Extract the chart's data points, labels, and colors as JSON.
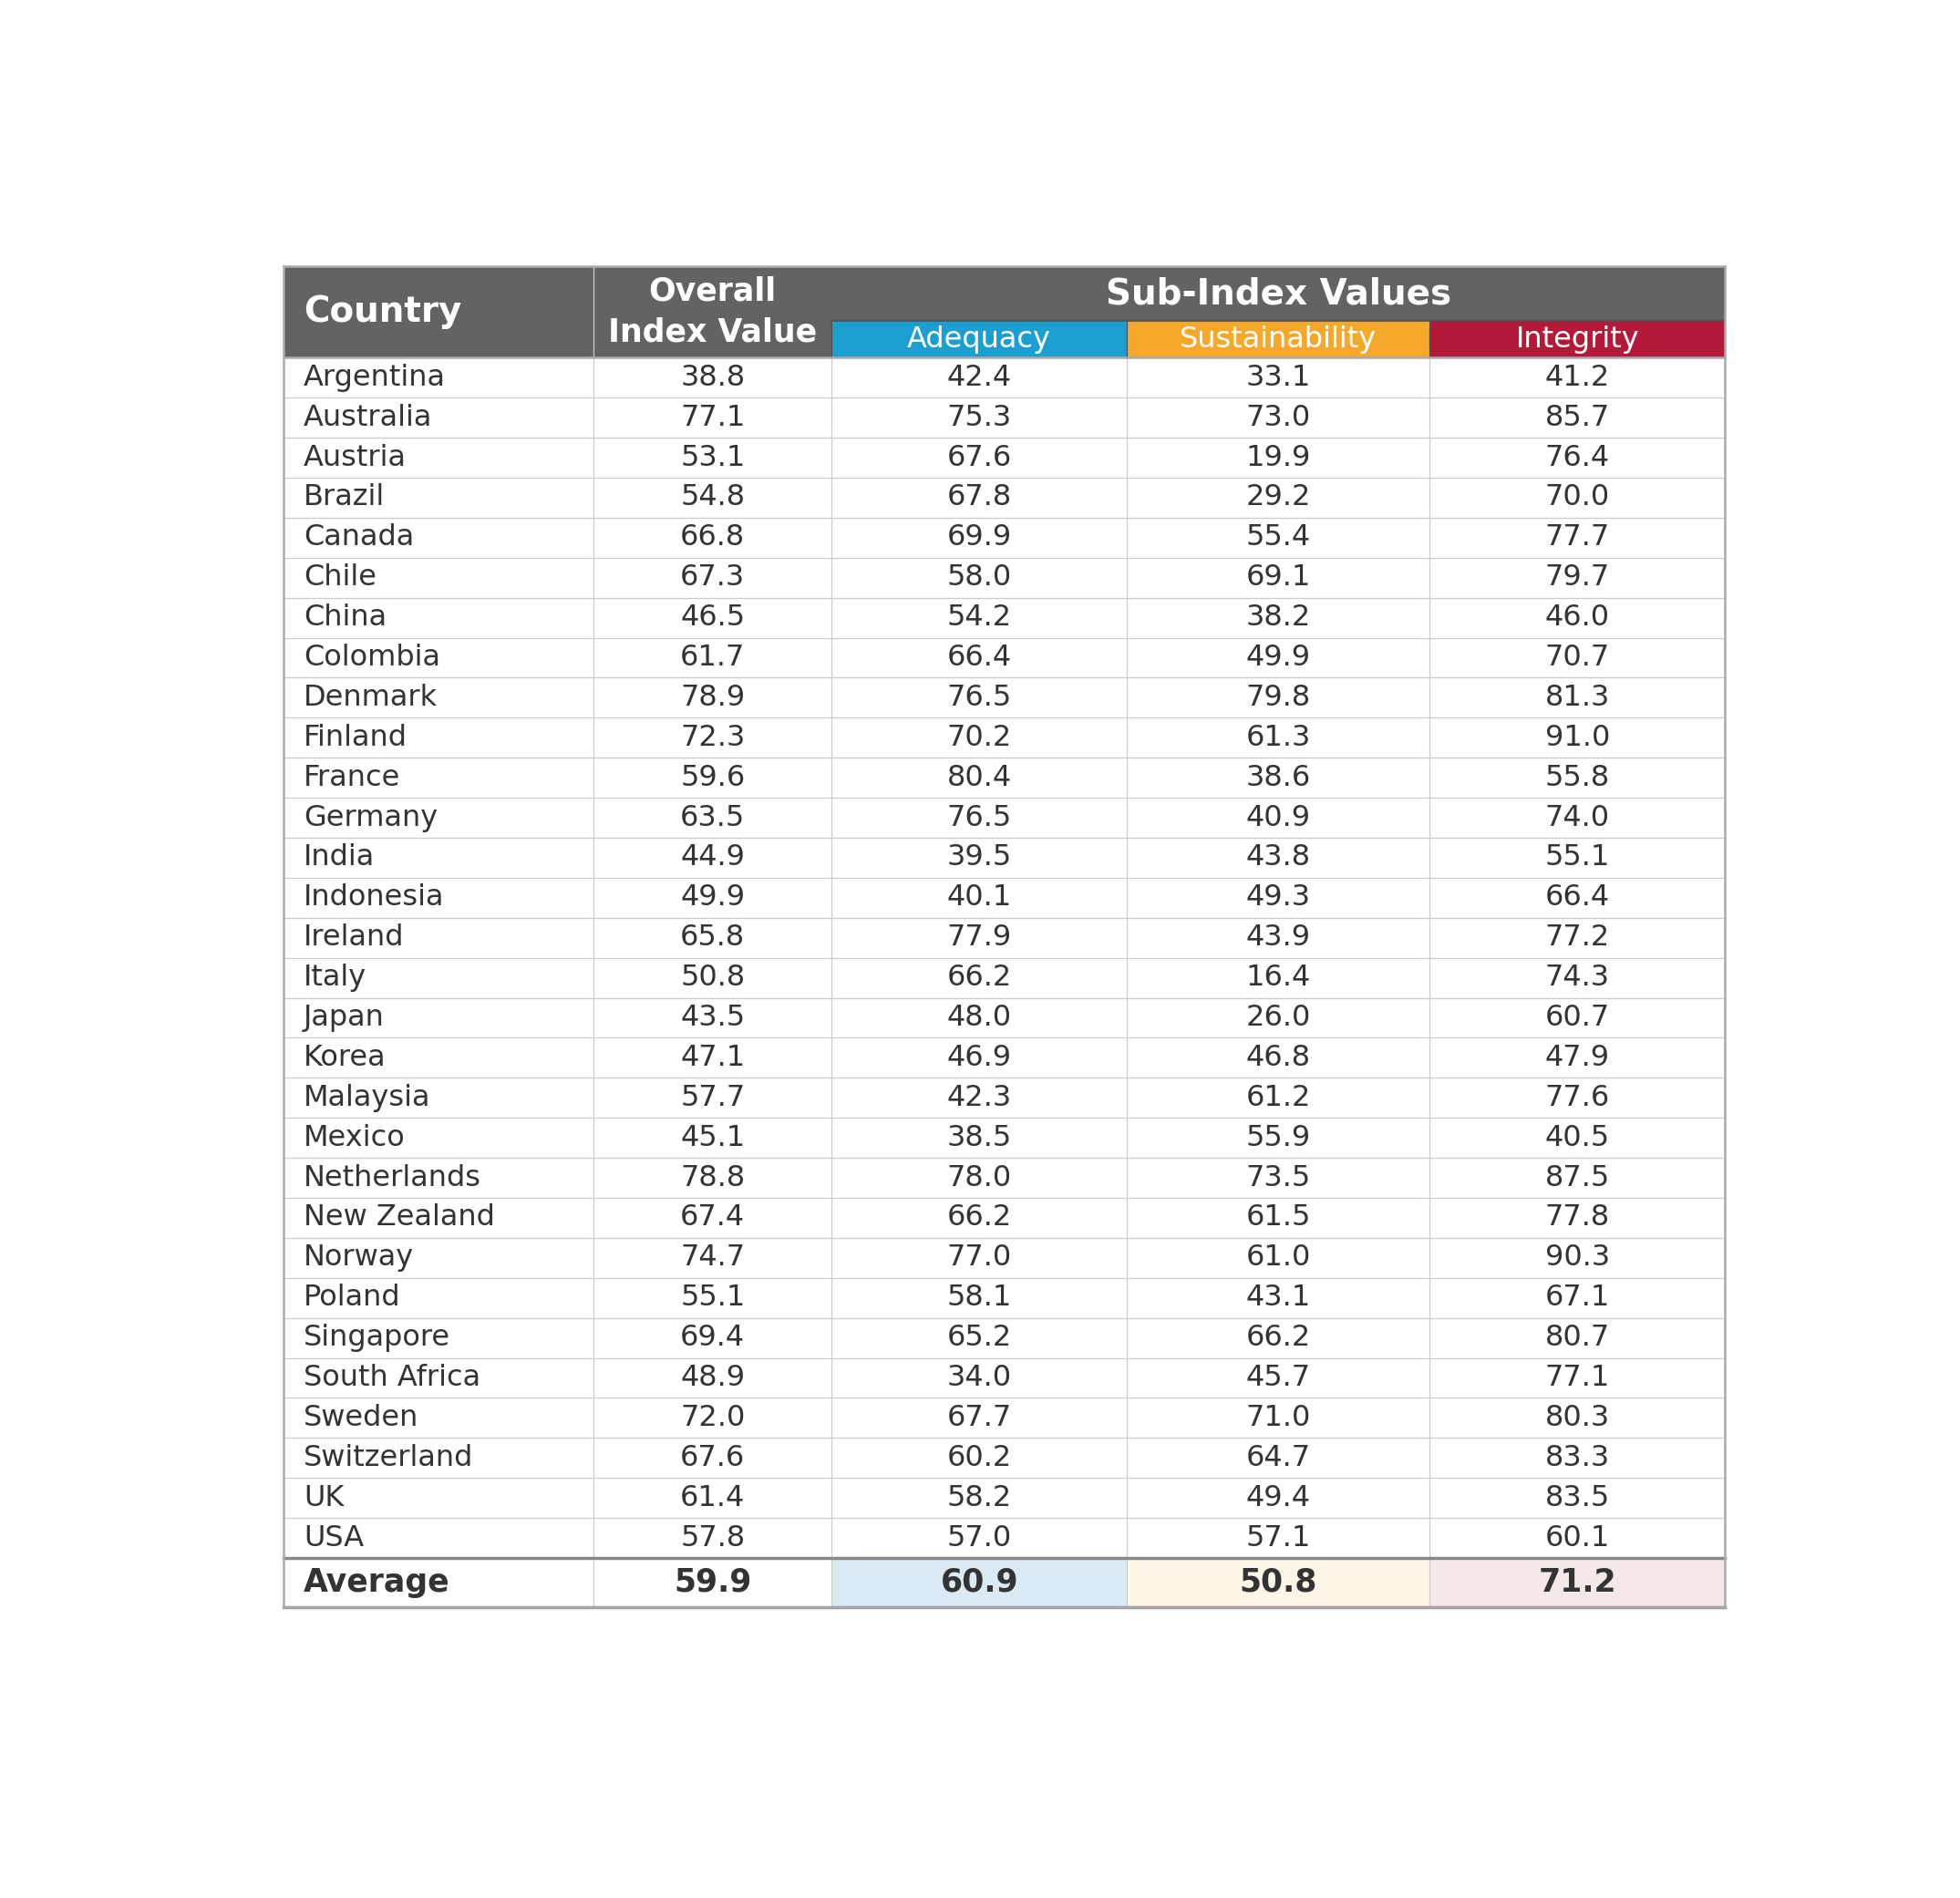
{
  "countries": [
    "Argentina",
    "Australia",
    "Austria",
    "Brazil",
    "Canada",
    "Chile",
    "China",
    "Colombia",
    "Denmark",
    "Finland",
    "France",
    "Germany",
    "India",
    "Indonesia",
    "Ireland",
    "Italy",
    "Japan",
    "Korea",
    "Malaysia",
    "Mexico",
    "Netherlands",
    "New Zealand",
    "Norway",
    "Poland",
    "Singapore",
    "South Africa",
    "Sweden",
    "Switzerland",
    "UK",
    "USA"
  ],
  "overall": [
    38.8,
    77.1,
    53.1,
    54.8,
    66.8,
    67.3,
    46.5,
    61.7,
    78.9,
    72.3,
    59.6,
    63.5,
    44.9,
    49.9,
    65.8,
    50.8,
    43.5,
    47.1,
    57.7,
    45.1,
    78.8,
    67.4,
    74.7,
    55.1,
    69.4,
    48.9,
    72.0,
    67.6,
    61.4,
    57.8
  ],
  "adequacy": [
    42.4,
    75.3,
    67.6,
    67.8,
    69.9,
    58.0,
    54.2,
    66.4,
    76.5,
    70.2,
    80.4,
    76.5,
    39.5,
    40.1,
    77.9,
    66.2,
    48.0,
    46.9,
    42.3,
    38.5,
    78.0,
    66.2,
    77.0,
    58.1,
    65.2,
    34.0,
    67.7,
    60.2,
    58.2,
    57.0
  ],
  "sustainability": [
    33.1,
    73.0,
    19.9,
    29.2,
    55.4,
    69.1,
    38.2,
    49.9,
    79.8,
    61.3,
    38.6,
    40.9,
    43.8,
    49.3,
    43.9,
    16.4,
    26.0,
    46.8,
    61.2,
    55.9,
    73.5,
    61.5,
    61.0,
    43.1,
    66.2,
    45.7,
    71.0,
    64.7,
    49.4,
    57.1
  ],
  "integrity": [
    41.2,
    85.7,
    76.4,
    70.0,
    77.7,
    79.7,
    46.0,
    70.7,
    81.3,
    91.0,
    55.8,
    74.0,
    55.1,
    66.4,
    77.2,
    74.3,
    60.7,
    47.9,
    77.6,
    40.5,
    87.5,
    77.8,
    90.3,
    67.1,
    80.7,
    77.1,
    80.3,
    83.3,
    83.5,
    60.1
  ],
  "avg_overall": 59.9,
  "avg_adequacy": 60.9,
  "avg_sustainability": 50.8,
  "avg_integrity": 71.2,
  "header_bg": "#636363",
  "header_text": "#ffffff",
  "adequacy_color": "#1b9fd1",
  "sustainability_color": "#f5a82a",
  "integrity_color": "#b5193a",
  "avg_adequacy_bg": "#daeaf5",
  "avg_sustainability_bg": "#fdf5e6",
  "avg_integrity_bg": "#f5e8e8",
  "row_line_color": "#cccccc",
  "outer_border_color": "#aaaaaa",
  "data_text_color": "#333333"
}
